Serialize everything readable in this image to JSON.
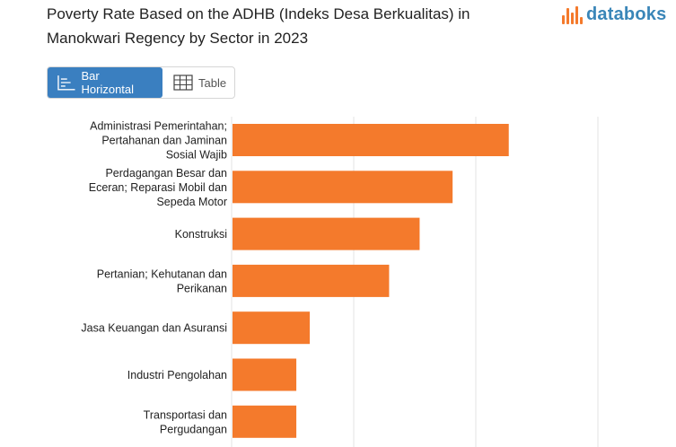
{
  "header": {
    "title_line1": "Poverty Rate Based on the ADHB (Indeks Desa Berkualitas) in",
    "title_line2": "Manokwari Regency by Sector in 2023"
  },
  "brand": {
    "name": "databoks",
    "color": "#3a86b8",
    "accent": "#f47a2c"
  },
  "tabs": {
    "bar_label": "Bar Horizontal",
    "table_label": "Table",
    "active_color": "#3a7fc0"
  },
  "chart_data": {
    "type": "bar",
    "orientation": "horizontal",
    "bar_color": "#f47a2c",
    "grid": true,
    "xlim": [
      0,
      30
    ],
    "categories": [
      [
        "Administrasi Pemerintahan;",
        "Pertahanan dan Jaminan",
        "Sosial Wajib"
      ],
      [
        "Perdagangan Besar dan",
        "Eceran; Reparasi Mobil dan",
        "Sepeda Motor"
      ],
      [
        "Konstruksi"
      ],
      [
        "Pertanian; Kehutanan dan",
        "Perikanan"
      ],
      [
        "Jasa Keuangan dan Asuransi"
      ],
      [
        "Industri Pengolahan"
      ],
      [
        "Transportasi dan",
        "Pergudangan"
      ]
    ],
    "values": [
      22.7,
      18.1,
      15.4,
      12.9,
      6.4,
      5.3,
      5.3
    ]
  }
}
